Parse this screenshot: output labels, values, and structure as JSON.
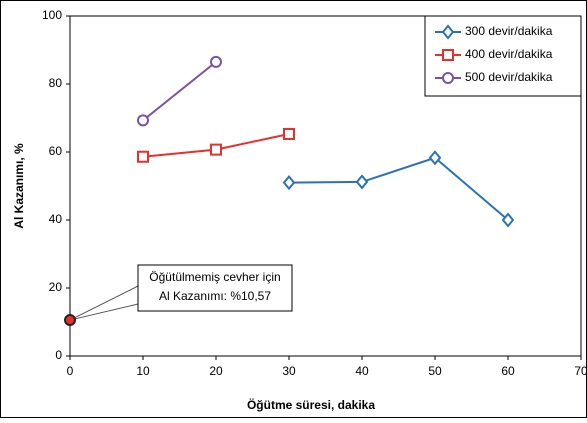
{
  "chart_data": {
    "type": "line",
    "x_label": "Öğütme süresi, dakika",
    "y_label": "Al Kazanımı, %",
    "xlim": [
      0,
      70
    ],
    "xticks": [
      0,
      10,
      20,
      30,
      40,
      50,
      60,
      70
    ],
    "ylim": [
      0,
      100
    ],
    "yticks": [
      0,
      20,
      40,
      60,
      80,
      100
    ],
    "grid": false,
    "legend": "upper right",
    "series": [
      {
        "name": "300 devir/dakika",
        "color": "#2a72b5",
        "marker": "diamond",
        "x": [
          30,
          40,
          50,
          60
        ],
        "values": [
          51,
          51.2,
          58.3,
          40
        ]
      },
      {
        "name": "400 devir/dakika",
        "color": "#e8302a",
        "marker": "square",
        "x": [
          10,
          20,
          30
        ],
        "values": [
          58.6,
          60.7,
          65.3
        ]
      },
      {
        "name": "500 devir/dakika",
        "color": "#7a52a0",
        "marker": "circle",
        "x": [
          10,
          20
        ],
        "values": [
          69.3,
          86.5
        ]
      }
    ],
    "annotation": {
      "lines": [
        "Öğütülmemiş  cevher için",
        "Al Kazanımı:  %10,57"
      ],
      "x": 0,
      "y": 10.57,
      "color": "#e8302a"
    }
  }
}
